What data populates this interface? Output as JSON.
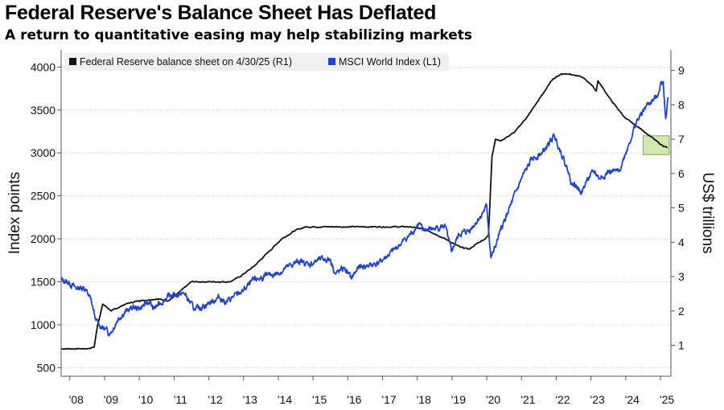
{
  "header": {
    "title": "Federal Reserve's Balance Sheet Has Deflated",
    "subtitle": "A return to quantitative easing may help stabilizing markets"
  },
  "chart_data": {
    "type": "line",
    "title": "Federal Reserve's Balance Sheet Has Deflated",
    "subtitle": "A return to quantitative easing may help stabilizing markets",
    "xlabel": "",
    "ylabel_left": "Index points",
    "ylabel_right": "US$ trillions",
    "xlim": [
      2007.75,
      2025.3
    ],
    "ylim_left": [
      400,
      4200
    ],
    "ylim_right": [
      0.1,
      9.6
    ],
    "x_ticks": [
      2008,
      2009,
      2010,
      2011,
      2012,
      2013,
      2014,
      2015,
      2016,
      2017,
      2018,
      2019,
      2020,
      2021,
      2022,
      2023,
      2024,
      2025
    ],
    "x_tick_labels": [
      "'08",
      "'09",
      "'10",
      "'11",
      "'12",
      "'13",
      "'14",
      "'15",
      "'16",
      "'17",
      "'18",
      "'19",
      "'20",
      "'21",
      "'22",
      "'23",
      "'24",
      "'25"
    ],
    "left_ticks": [
      500,
      1000,
      1500,
      2000,
      2500,
      3000,
      3500,
      4000
    ],
    "left_tick_labels": [
      "500",
      "1000",
      "1500",
      "2000",
      "2500",
      "3000",
      "3500",
      "4000"
    ],
    "right_ticks": [
      1,
      2,
      3,
      4,
      5,
      6,
      7,
      8,
      9
    ],
    "right_tick_labels": [
      "1",
      "2",
      "3",
      "4",
      "5",
      "6",
      "7",
      "8",
      "9"
    ],
    "grid": "horizontal dotted",
    "legend_position": "top-left",
    "highlight": {
      "x": [
        2024.5,
        2025.25
      ],
      "y_right": [
        6.55,
        7.1
      ],
      "color": "#c8e6a0"
    },
    "series": [
      {
        "name": "Federal Reserve balance sheet on 4/30/25 (R1)",
        "axis": "right",
        "color": "#111111",
        "x": [
          2007.75,
          2008.5,
          2008.7,
          2008.8,
          2008.95,
          2009.2,
          2009.6,
          2010.0,
          2010.5,
          2010.85,
          2011.1,
          2011.5,
          2012.0,
          2012.6,
          2012.9,
          2013.3,
          2013.7,
          2014.1,
          2014.5,
          2014.8,
          2015.5,
          2016.5,
          2017.5,
          2017.8,
          2018.3,
          2018.8,
          2019.25,
          2019.5,
          2019.7,
          2019.95,
          2020.05,
          2020.15,
          2020.25,
          2020.4,
          2020.8,
          2021.2,
          2021.6,
          2021.9,
          2022.15,
          2022.4,
          2022.75,
          2023.0,
          2023.15,
          2023.2,
          2023.6,
          2024.0,
          2024.5,
          2025.0,
          2025.2
        ],
        "values": [
          0.9,
          0.9,
          0.95,
          1.6,
          2.2,
          2.0,
          2.2,
          2.3,
          2.35,
          2.3,
          2.5,
          2.85,
          2.85,
          2.85,
          3.0,
          3.3,
          3.7,
          4.1,
          4.35,
          4.45,
          4.45,
          4.45,
          4.45,
          4.45,
          4.35,
          4.1,
          3.85,
          3.8,
          3.95,
          4.1,
          4.2,
          6.5,
          7.0,
          6.95,
          7.2,
          7.7,
          8.3,
          8.75,
          8.9,
          8.9,
          8.8,
          8.6,
          8.4,
          8.7,
          8.1,
          7.6,
          7.25,
          6.85,
          6.75
        ]
      },
      {
        "name": "MSCI World Index  (L1)",
        "axis": "left",
        "color": "#2244cc",
        "x": [
          2007.75,
          2007.9,
          2008.0,
          2008.2,
          2008.4,
          2008.6,
          2008.75,
          2008.85,
          2009.0,
          2009.15,
          2009.2,
          2009.4,
          2009.6,
          2009.8,
          2010.0,
          2010.3,
          2010.4,
          2010.6,
          2010.8,
          2011.0,
          2011.3,
          2011.6,
          2011.75,
          2012.0,
          2012.3,
          2012.5,
          2012.7,
          2013.0,
          2013.3,
          2013.6,
          2014.0,
          2014.3,
          2014.6,
          2014.9,
          2015.2,
          2015.5,
          2015.65,
          2015.9,
          2016.1,
          2016.3,
          2016.6,
          2016.9,
          2017.2,
          2017.5,
          2017.8,
          2018.05,
          2018.15,
          2018.5,
          2018.8,
          2018.98,
          2019.2,
          2019.5,
          2019.8,
          2020.0,
          2020.12,
          2020.2,
          2020.4,
          2020.7,
          2021.0,
          2021.3,
          2021.6,
          2021.95,
          2022.2,
          2022.45,
          2022.75,
          2022.9,
          2023.1,
          2023.25,
          2023.5,
          2023.8,
          2024.0,
          2024.3,
          2024.6,
          2024.9,
          2025.0,
          2025.08,
          2025.15,
          2025.22
        ],
        "values": [
          1520,
          1500,
          1480,
          1420,
          1440,
          1300,
          1050,
          1000,
          950,
          900,
          920,
          1080,
          1150,
          1200,
          1190,
          1270,
          1180,
          1250,
          1320,
          1350,
          1360,
          1170,
          1200,
          1250,
          1320,
          1260,
          1320,
          1400,
          1520,
          1560,
          1600,
          1680,
          1740,
          1700,
          1760,
          1760,
          1590,
          1660,
          1540,
          1660,
          1690,
          1720,
          1820,
          1930,
          2050,
          2180,
          2100,
          2120,
          2150,
          1850,
          2050,
          2100,
          2250,
          2380,
          1780,
          1850,
          2100,
          2400,
          2700,
          2930,
          3000,
          3200,
          2950,
          2650,
          2550,
          2700,
          2780,
          2700,
          2780,
          2780,
          3000,
          3350,
          3550,
          3650,
          3800,
          3830,
          3400,
          3650
        ]
      }
    ]
  }
}
